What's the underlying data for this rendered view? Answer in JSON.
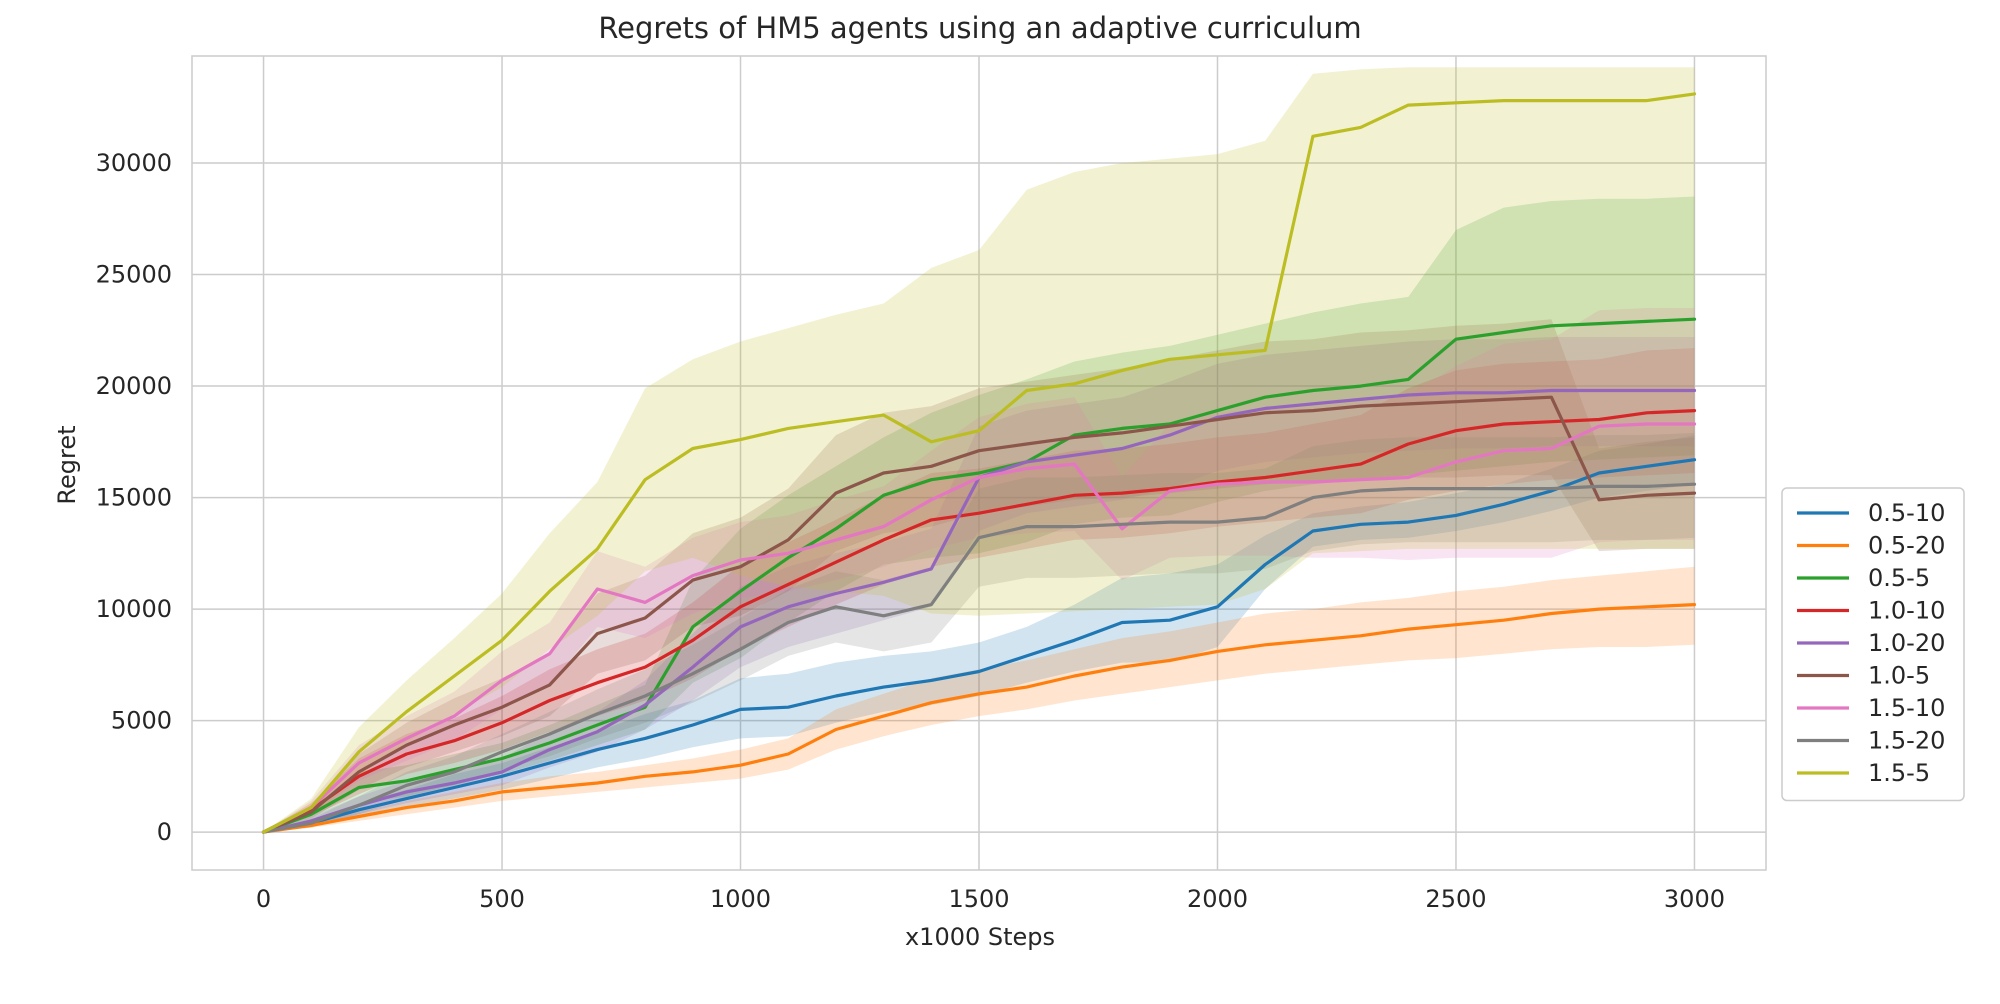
{
  "chart_data": {
    "type": "line",
    "title": "Regrets of HM5 agents using an adaptive curriculum",
    "xlabel": "x1000 Steps",
    "ylabel": "Regret",
    "xlim": [
      -150,
      3150
    ],
    "ylim": [
      -1700,
      34800
    ],
    "xticks": [
      0,
      500,
      1000,
      1500,
      2000,
      2500,
      3000
    ],
    "yticks": [
      0,
      5000,
      10000,
      15000,
      20000,
      25000,
      30000
    ],
    "xtick_labels": [
      "0",
      "500",
      "1000",
      "1500",
      "2000",
      "2500",
      "3000"
    ],
    "ytick_labels": [
      "0",
      "5000",
      "10000",
      "15000",
      "20000",
      "25000",
      "30000"
    ],
    "grid": true,
    "legend_position": "outside-right-bottom",
    "x": [
      0,
      100,
      200,
      300,
      400,
      500,
      600,
      700,
      800,
      900,
      1000,
      1100,
      1200,
      1300,
      1400,
      1500,
      1600,
      1700,
      1800,
      1900,
      2000,
      2100,
      2200,
      2300,
      2400,
      2500,
      2600,
      2700,
      2800,
      2900,
      3000
    ],
    "series": [
      {
        "name": "0.5-10",
        "color": "#1f77b4",
        "values": [
          0,
          400,
          1000,
          1500,
          2000,
          2500,
          3100,
          3700,
          4200,
          4800,
          5500,
          5600,
          6100,
          6500,
          6800,
          7200,
          7900,
          8600,
          9400,
          9500,
          10100,
          12000,
          13500,
          13800,
          13900,
          14200,
          14700,
          15300,
          16100,
          16400,
          16700
        ],
        "lower": [
          0,
          300,
          700,
          1100,
          1500,
          1900,
          2400,
          2900,
          3300,
          3800,
          4200,
          4300,
          4900,
          5400,
          5700,
          6100,
          6700,
          7200,
          7600,
          7600,
          8300,
          10900,
          12800,
          13100,
          13200,
          13500,
          13900,
          14400,
          15000,
          15300,
          15600
        ],
        "upper": [
          0,
          500,
          1300,
          1900,
          2600,
          3100,
          3800,
          4500,
          5300,
          5900,
          6900,
          7100,
          7600,
          7900,
          8100,
          8500,
          9200,
          10200,
          11400,
          11600,
          12000,
          13300,
          14300,
          14600,
          14800,
          15200,
          15600,
          16300,
          17100,
          17400,
          17800
        ]
      },
      {
        "name": "0.5-20",
        "color": "#ff7f0e",
        "values": [
          0,
          300,
          700,
          1100,
          1400,
          1800,
          2000,
          2200,
          2500,
          2700,
          3000,
          3500,
          4600,
          5200,
          5800,
          6200,
          6500,
          7000,
          7400,
          7700,
          8100,
          8400,
          8600,
          8800,
          9100,
          9300,
          9500,
          9800,
          10000,
          10100,
          10200
        ],
        "lower": [
          0,
          200,
          500,
          800,
          1100,
          1400,
          1600,
          1800,
          2000,
          2200,
          2400,
          2800,
          3700,
          4300,
          4800,
          5200,
          5500,
          5900,
          6200,
          6500,
          6800,
          7100,
          7300,
          7500,
          7700,
          7800,
          8000,
          8200,
          8300,
          8300,
          8400
        ],
        "upper": [
          0,
          400,
          900,
          1400,
          1800,
          2200,
          2500,
          2700,
          3000,
          3300,
          3700,
          4200,
          5500,
          6200,
          6900,
          7300,
          7700,
          8200,
          8700,
          9000,
          9400,
          9800,
          10000,
          10300,
          10500,
          10800,
          11000,
          11300,
          11500,
          11700,
          11900
        ]
      },
      {
        "name": "0.5-5",
        "color": "#2ca02c",
        "values": [
          0,
          800,
          2000,
          2300,
          2800,
          3300,
          4000,
          4800,
          5600,
          9200,
          10800,
          12300,
          13600,
          15100,
          15800,
          16100,
          16600,
          17800,
          18100,
          18300,
          18900,
          19500,
          19800,
          20000,
          20300,
          22100,
          22400,
          22700,
          22800,
          22900,
          23000
        ],
        "lower": [
          0,
          500,
          1300,
          1600,
          2100,
          2600,
          3200,
          3900,
          4600,
          6700,
          7800,
          9400,
          10800,
          12000,
          12300,
          12500,
          13000,
          13800,
          14100,
          14200,
          14800,
          15300,
          15600,
          15800,
          16000,
          16200,
          16400,
          16600,
          16700,
          16800,
          16900
        ],
        "upper": [
          0,
          1100,
          2700,
          3000,
          3500,
          4000,
          4800,
          5700,
          6600,
          11300,
          13600,
          15100,
          16400,
          17700,
          18800,
          19600,
          20300,
          21100,
          21500,
          21800,
          22300,
          22800,
          23300,
          23700,
          24000,
          27000,
          28000,
          28300,
          28400,
          28400,
          28500
        ]
      },
      {
        "name": "1.0-10",
        "color": "#d62728",
        "values": [
          0,
          1000,
          2500,
          3500,
          4100,
          4900,
          5900,
          6700,
          7400,
          8600,
          10100,
          11100,
          12100,
          13100,
          14000,
          14300,
          14700,
          15100,
          15200,
          15400,
          15700,
          15900,
          16200,
          16500,
          17400,
          18000,
          18300,
          18400,
          18500,
          18800,
          18900
        ],
        "lower": [
          0,
          700,
          1700,
          2600,
          3100,
          3700,
          4500,
          5200,
          5900,
          6900,
          8200,
          9200,
          10200,
          11100,
          11900,
          12300,
          12700,
          13100,
          13200,
          13400,
          13700,
          13900,
          14100,
          14300,
          14900,
          15300,
          15600,
          15800,
          15900,
          16000,
          16100
        ],
        "upper": [
          0,
          1300,
          3300,
          4400,
          5100,
          6100,
          7300,
          8200,
          8900,
          10300,
          12000,
          13000,
          14000,
          15100,
          16100,
          16300,
          16700,
          17100,
          17200,
          17400,
          17700,
          17900,
          18300,
          18700,
          19900,
          20700,
          21000,
          21100,
          21200,
          21600,
          21700
        ]
      },
      {
        "name": "1.0-20",
        "color": "#9467bd",
        "values": [
          0,
          500,
          1200,
          1800,
          2200,
          2700,
          3700,
          4500,
          5700,
          7400,
          9200,
          10100,
          10700,
          11200,
          11800,
          15900,
          16600,
          16900,
          17200,
          17800,
          18600,
          19000,
          19200,
          19400,
          19600,
          19700,
          19700,
          19800,
          19800,
          19800,
          19800
        ],
        "lower": [
          0,
          300,
          800,
          1300,
          1700,
          2100,
          2900,
          3600,
          4600,
          5900,
          7400,
          8300,
          8900,
          9500,
          10100,
          13500,
          14300,
          14600,
          14900,
          15400,
          16200,
          16600,
          16800,
          17000,
          17100,
          17200,
          17200,
          17300,
          17300,
          17300,
          17300
        ],
        "upper": [
          0,
          700,
          1600,
          2300,
          2800,
          3300,
          4500,
          5400,
          6800,
          8900,
          11000,
          11900,
          12500,
          13000,
          13600,
          18200,
          18900,
          19200,
          19500,
          20200,
          21000,
          21400,
          21600,
          21800,
          22000,
          22100,
          22100,
          22200,
          22200,
          22200,
          22200
        ]
      },
      {
        "name": "1.0-5",
        "color": "#8c564b",
        "values": [
          0,
          900,
          2700,
          3900,
          4800,
          5600,
          6600,
          8900,
          9600,
          11300,
          11900,
          13100,
          15200,
          16100,
          16400,
          17100,
          17400,
          17700,
          17900,
          18200,
          18500,
          18800,
          18900,
          19100,
          19200,
          19300,
          19400,
          19500,
          14900,
          15100,
          15200
        ],
        "lower": [
          0,
          600,
          1900,
          2900,
          3600,
          4300,
          5200,
          7100,
          7700,
          9200,
          9700,
          10800,
          12600,
          13400,
          13700,
          14300,
          14600,
          14900,
          15000,
          15200,
          15400,
          15600,
          15700,
          15800,
          15900,
          15900,
          16000,
          16000,
          12600,
          12700,
          12700
        ],
        "upper": [
          0,
          1200,
          3500,
          4900,
          6000,
          6900,
          8000,
          10700,
          11500,
          13400,
          14100,
          15400,
          17800,
          18800,
          19100,
          19900,
          20200,
          20500,
          20800,
          21200,
          21600,
          22000,
          22100,
          22400,
          22500,
          22700,
          22800,
          23000,
          17200,
          17500,
          17700
        ]
      },
      {
        "name": "1.5-10",
        "color": "#e377c2",
        "values": [
          0,
          1100,
          3100,
          4200,
          5200,
          6800,
          8000,
          10900,
          10300,
          11500,
          12200,
          12500,
          13100,
          13700,
          14900,
          15900,
          16300,
          16500,
          13600,
          15300,
          15600,
          15700,
          15700,
          15800,
          15900,
          16600,
          17100,
          17200,
          18200,
          18300,
          18300
        ],
        "lower": [
          0,
          800,
          2300,
          3200,
          4100,
          5500,
          6600,
          9200,
          8700,
          9800,
          10500,
          10800,
          11300,
          11900,
          12700,
          13200,
          13400,
          13500,
          11300,
          12300,
          12400,
          12400,
          12300,
          12300,
          12200,
          12300,
          12300,
          12300,
          13000,
          13100,
          13100
        ],
        "upper": [
          0,
          1400,
          3900,
          5200,
          6300,
          8100,
          9400,
          12600,
          11900,
          13200,
          13900,
          14200,
          14900,
          15500,
          17100,
          18600,
          19200,
          19500,
          15900,
          18300,
          18800,
          19000,
          19100,
          19300,
          19600,
          20900,
          21900,
          22100,
          23400,
          23500,
          23500
        ]
      },
      {
        "name": "1.5-20",
        "color": "#7f7f7f",
        "values": [
          0,
          400,
          1200,
          2100,
          2700,
          3600,
          4400,
          5300,
          6100,
          7100,
          8200,
          9400,
          10100,
          9700,
          10200,
          13200,
          13700,
          13700,
          13800,
          13900,
          13900,
          14100,
          15000,
          15300,
          15400,
          15400,
          15400,
          15400,
          15500,
          15500,
          15600
        ],
        "lower": [
          0,
          200,
          800,
          1500,
          2000,
          2800,
          3400,
          4200,
          4900,
          5800,
          6800,
          7900,
          8500,
          8100,
          8500,
          11000,
          11400,
          11400,
          11500,
          11600,
          11600,
          11800,
          12600,
          12900,
          13000,
          13000,
          13000,
          13000,
          13100,
          13100,
          13200
        ],
        "upper": [
          0,
          600,
          1600,
          2700,
          3400,
          4400,
          5400,
          6400,
          7300,
          8400,
          9600,
          10900,
          11700,
          11300,
          11900,
          15400,
          15900,
          15900,
          16000,
          16100,
          16100,
          16300,
          17300,
          17600,
          17700,
          17700,
          17700,
          17700,
          17800,
          17800,
          17900
        ]
      },
      {
        "name": "1.5-5",
        "color": "#bcbd22",
        "values": [
          0,
          1100,
          3600,
          5400,
          7000,
          8600,
          10800,
          12700,
          15800,
          17200,
          17600,
          18100,
          18400,
          18700,
          17500,
          18000,
          19800,
          20100,
          20700,
          21200,
          21400,
          21600,
          31200,
          31600,
          32600,
          32700,
          32800,
          32800,
          32800,
          32800,
          33100
        ],
        "lower": [
          0,
          700,
          2500,
          4000,
          5300,
          6500,
          8200,
          9700,
          11700,
          12300,
          11500,
          11000,
          10800,
          10600,
          9800,
          9700,
          9800,
          9900,
          10000,
          10100,
          10200,
          10900,
          12500,
          12600,
          12700,
          12700,
          12700,
          12700,
          12700,
          12700,
          12700
        ],
        "upper": [
          0,
          1500,
          4700,
          6800,
          8700,
          10700,
          13400,
          15700,
          19900,
          21200,
          22000,
          22600,
          23200,
          23700,
          25300,
          26100,
          28800,
          29600,
          30000,
          30200,
          30400,
          31000,
          34000,
          34200,
          34300,
          34300,
          34300,
          34300,
          34300,
          34300,
          34300
        ]
      }
    ]
  }
}
